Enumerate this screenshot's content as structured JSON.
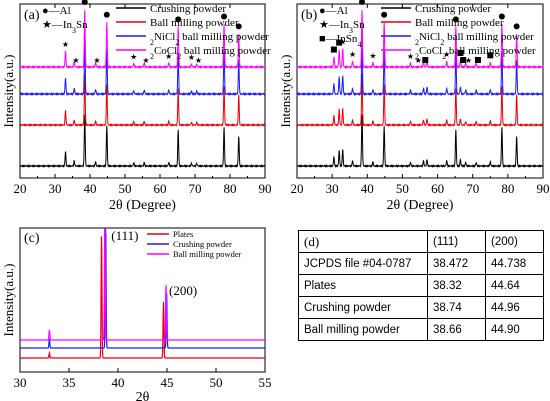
{
  "panels": [
    {
      "label": "(a)"
    },
    {
      "label": "(b)"
    },
    {
      "label": "(c)"
    },
    {
      "label": "(d)"
    }
  ],
  "chart_data": [
    {
      "panel": "(a)",
      "type": "line",
      "xlabel": "2θ (Degree)",
      "ylabel": "Intensity(a.u.)",
      "xlim": [
        20,
        90
      ],
      "xticks": [
        "20",
        "30",
        "40",
        "50",
        "60",
        "70",
        "80",
        "90"
      ],
      "markers_legend": [
        {
          "symbol": "●",
          "label": "Al"
        },
        {
          "symbol": "★",
          "label": "In3Sn"
        }
      ],
      "series": [
        {
          "name": "Crushing powder",
          "color": "#000000",
          "offset": 0
        },
        {
          "name": "Ball milling powder",
          "color": "#e8000b",
          "offset": 1
        },
        {
          "name": "2NiCl2 ball milling powder",
          "color": "#1a1aff",
          "offset": 2
        },
        {
          "name": "2CoCl2 ball milling powder",
          "color": "#ff00ff",
          "offset": 3
        }
      ],
      "peaks": [
        {
          "x": 33.0,
          "h": 0.28
        },
        {
          "x": 35.5,
          "h": 0.1
        },
        {
          "x": 38.5,
          "h": 1.0
        },
        {
          "x": 41.6,
          "h": 0.08
        },
        {
          "x": 44.8,
          "h": 0.78
        },
        {
          "x": 52.5,
          "h": 0.06
        },
        {
          "x": 55.5,
          "h": 0.07
        },
        {
          "x": 62.5,
          "h": 0.07
        },
        {
          "x": 65.2,
          "h": 0.7
        },
        {
          "x": 69.0,
          "h": 0.05
        },
        {
          "x": 70.5,
          "h": 0.05
        },
        {
          "x": 78.3,
          "h": 0.75
        },
        {
          "x": 82.5,
          "h": 0.58
        }
      ],
      "symbols": [
        {
          "type": "●",
          "x": 38.5
        },
        {
          "type": "●",
          "x": 44.8
        },
        {
          "type": "●",
          "x": 65.2
        },
        {
          "type": "●",
          "x": 78.3
        },
        {
          "type": "●",
          "x": 82.5
        },
        {
          "type": "★",
          "x": 33.0
        },
        {
          "type": "★",
          "x": 36.0
        },
        {
          "type": "★",
          "x": 42.0
        },
        {
          "type": "★",
          "x": 52.5
        },
        {
          "type": "★",
          "x": 56.0
        },
        {
          "type": "★",
          "x": 62.5
        },
        {
          "type": "★",
          "x": 69.0
        },
        {
          "type": "★",
          "x": 71.0
        }
      ]
    },
    {
      "panel": "(b)",
      "type": "line",
      "xlabel": "2θ (Degree)",
      "ylabel": "Intensity(a.u.)",
      "xlim": [
        20,
        90
      ],
      "xticks": [
        "20",
        "30",
        "40",
        "50",
        "60",
        "70",
        "80",
        "90"
      ],
      "markers_legend": [
        {
          "symbol": "●",
          "label": "Al"
        },
        {
          "symbol": "★",
          "label": "In3Sn"
        },
        {
          "symbol": "■",
          "label": "InSn4"
        }
      ],
      "series": [
        {
          "name": "Crushing powder",
          "color": "#000000",
          "offset": 0
        },
        {
          "name": "Ball milling powder",
          "color": "#e8000b",
          "offset": 1
        },
        {
          "name": "2NiCl2 ball milling powder",
          "color": "#1a1aff",
          "offset": 2
        },
        {
          "name": "2CoCl2 ball milling powder",
          "color": "#ff00ff",
          "offset": 3
        }
      ],
      "peaks": [
        {
          "x": 30.5,
          "h": 0.18
        },
        {
          "x": 32.0,
          "h": 0.3
        },
        {
          "x": 33.0,
          "h": 0.32
        },
        {
          "x": 35.8,
          "h": 0.1
        },
        {
          "x": 38.5,
          "h": 1.0
        },
        {
          "x": 41.6,
          "h": 0.08
        },
        {
          "x": 44.8,
          "h": 0.78
        },
        {
          "x": 52.3,
          "h": 0.07
        },
        {
          "x": 56.0,
          "h": 0.1
        },
        {
          "x": 57.0,
          "h": 0.12
        },
        {
          "x": 62.6,
          "h": 0.1
        },
        {
          "x": 65.2,
          "h": 0.7
        },
        {
          "x": 66.5,
          "h": 0.12
        },
        {
          "x": 68.0,
          "h": 0.07
        },
        {
          "x": 71.0,
          "h": 0.07
        },
        {
          "x": 75.0,
          "h": 0.08
        },
        {
          "x": 78.3,
          "h": 0.75
        },
        {
          "x": 82.5,
          "h": 0.58
        }
      ],
      "symbols": [
        {
          "type": "●",
          "x": 38.5
        },
        {
          "type": "●",
          "x": 44.8
        },
        {
          "type": "●",
          "x": 65.2
        },
        {
          "type": "●",
          "x": 78.3
        },
        {
          "type": "●",
          "x": 82.5
        },
        {
          "type": "★",
          "x": 33.0
        },
        {
          "type": "★",
          "x": 35.8
        },
        {
          "type": "★",
          "x": 41.6
        },
        {
          "type": "★",
          "x": 52.3
        },
        {
          "type": "★",
          "x": 54.5
        },
        {
          "type": "★",
          "x": 62.6
        },
        {
          "type": "★",
          "x": 68.8
        },
        {
          "type": "■",
          "x": 30.5
        },
        {
          "type": "■",
          "x": 32.0
        },
        {
          "type": "■",
          "x": 56.5
        },
        {
          "type": "■",
          "x": 66.5
        },
        {
          "type": "■",
          "x": 71.5
        },
        {
          "type": "■",
          "x": 75.0
        },
        {
          "type": "■",
          "x": 67.3
        }
      ]
    },
    {
      "panel": "(c)",
      "type": "line",
      "xlabel": "2θ",
      "ylabel": "Intensity(a.u.)",
      "xlim": [
        30,
        55
      ],
      "xticks": [
        "30",
        "35",
        "40",
        "45",
        "50",
        "55"
      ],
      "series": [
        {
          "name": "Plates",
          "color": "#e8000b",
          "offset": 0,
          "peaks": [
            {
              "x": 33.0,
              "h": 0.04
            },
            {
              "x": 38.32,
              "h": 1.0
            },
            {
              "x": 44.64,
              "h": 0.45
            }
          ]
        },
        {
          "name": "Crushing powder",
          "color": "#1a1aff",
          "offset": 1,
          "peaks": [
            {
              "x": 33.0,
              "h": 0.07
            },
            {
              "x": 38.74,
              "h": 1.0
            },
            {
              "x": 44.96,
              "h": 0.45
            }
          ]
        },
        {
          "name": "Ball milling powder",
          "color": "#ff00ff",
          "offset": 2,
          "peaks": [
            {
              "x": 33.0,
              "h": 0.08
            },
            {
              "x": 38.66,
              "h": 1.0
            },
            {
              "x": 44.9,
              "h": 0.45
            }
          ]
        }
      ],
      "annotations": [
        {
          "text": "(111)",
          "x": 38.5
        },
        {
          "text": "(200)",
          "x": 44.8
        }
      ]
    },
    {
      "panel": "(d)",
      "type": "table",
      "columns": [
        "",
        "(111)",
        "(200)"
      ],
      "rows": [
        [
          "JCPDS file #04-0787",
          "38.472",
          "44.738"
        ],
        [
          "Plates",
          "38.32",
          "44.64"
        ],
        [
          "Crushing powder",
          "38.74",
          "44.96"
        ],
        [
          "Ball milling powder",
          "38.66",
          "44.90"
        ]
      ]
    }
  ]
}
